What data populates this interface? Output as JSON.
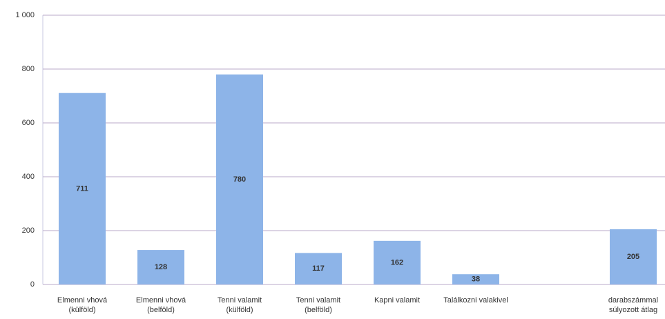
{
  "chart_data": {
    "type": "bar",
    "categories": [
      "Elmenni vhová (külföld)",
      "Elmenni vhová (belföld)",
      "Tenni valamit (külföld)",
      "Tenni valamit (belföld)",
      "Kapni valamit",
      "Találkozni valakivel",
      null,
      "darabszámmal súlyozott átlag"
    ],
    "values": [
      711,
      128,
      780,
      117,
      162,
      38,
      null,
      205
    ],
    "color": "#8db4e8",
    "ylim": [
      0,
      1000
    ],
    "yticks": [
      0,
      200,
      400,
      600,
      800,
      {
        "value": 1000,
        "label": "1 000"
      }
    ],
    "grid": true
  }
}
